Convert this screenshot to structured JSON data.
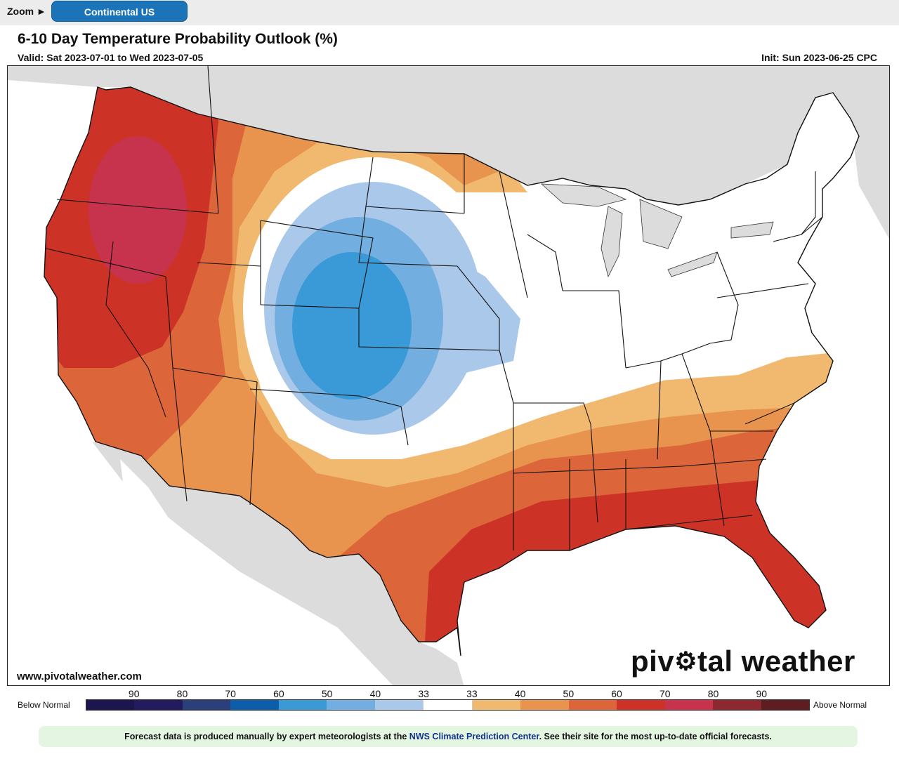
{
  "topbar": {
    "zoom_label": "Zoom ►",
    "region_button": "Continental US"
  },
  "header": {
    "title": "6-10 Day Temperature Probability Outlook (%)",
    "valid": "Valid: Sat 2023-07-01 to Wed 2023-07-05",
    "init": "Init: Sun 2023-06-25 CPC"
  },
  "footer": {
    "site_url": "www.pivotalweather.com",
    "brand_pre": "piv",
    "brand_post": "tal weather"
  },
  "legend": {
    "below_label": "Below Normal",
    "above_label": "Above Normal",
    "ticks": [
      "90",
      "80",
      "70",
      "60",
      "50",
      "40",
      "33",
      "33",
      "40",
      "50",
      "60",
      "70",
      "80",
      "90"
    ],
    "colors": [
      "#1b1650",
      "#221c5e",
      "#2b3f7a",
      "#0d5ea8",
      "#3a9ad8",
      "#72afe0",
      "#a9c8ea",
      "#ffffff",
      "#f1b970",
      "#e9944e",
      "#dc6639",
      "#cc3326",
      "#c7334d",
      "#8e2830",
      "#5e1d20"
    ]
  },
  "notice": {
    "prefix": "Forecast data is produced manually by expert meteorologists at the",
    "link": "NWS Climate Prediction Center",
    "suffix": ". See their site for the most up-to-date official forecasts."
  }
}
